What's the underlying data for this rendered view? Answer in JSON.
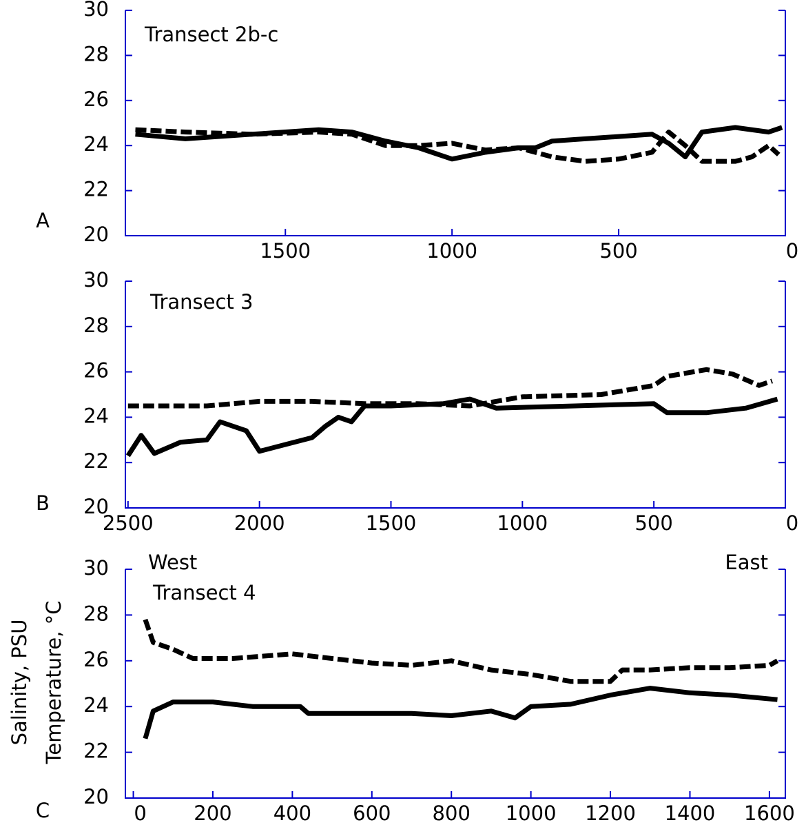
{
  "chart_data": [
    {
      "type": "line",
      "panel": "A",
      "annotations": [
        "Transect 2b-c"
      ],
      "xlim": [
        1980,
        0
      ],
      "xticks": [
        1500,
        1000,
        500,
        0
      ],
      "ylim": [
        20,
        30
      ],
      "yticks": [
        20,
        22,
        24,
        26,
        28,
        30
      ],
      "series": [
        {
          "color": "#000000",
          "dashed": false,
          "x": [
            1950,
            1800,
            1600,
            1400,
            1300,
            1200,
            1100,
            1000,
            900,
            800,
            750,
            700,
            600,
            500,
            400,
            350,
            300,
            250,
            150,
            50,
            10
          ],
          "values": [
            24.5,
            24.3,
            24.5,
            24.7,
            24.6,
            24.2,
            23.9,
            23.4,
            23.7,
            23.9,
            23.9,
            24.2,
            24.3,
            24.4,
            24.5,
            24.1,
            23.5,
            24.6,
            24.8,
            24.6,
            24.8
          ]
        },
        {
          "color": "#000000",
          "dashed": true,
          "x": [
            1950,
            1800,
            1600,
            1400,
            1300,
            1200,
            1100,
            1000,
            900,
            800,
            700,
            600,
            500,
            400,
            350,
            300,
            250,
            150,
            100,
            50,
            20
          ],
          "values": [
            24.7,
            24.6,
            24.5,
            24.6,
            24.5,
            24.0,
            24.0,
            24.1,
            23.8,
            23.9,
            23.5,
            23.3,
            23.4,
            23.7,
            24.6,
            24.0,
            23.3,
            23.3,
            23.5,
            24.0,
            23.6
          ]
        }
      ]
    },
    {
      "type": "line",
      "panel": "B",
      "annotations": [
        "Transect 3"
      ],
      "xlim": [
        2510,
        0
      ],
      "xticks": [
        2500,
        2000,
        1500,
        1000,
        500,
        0
      ],
      "ylim": [
        20,
        30
      ],
      "yticks": [
        20,
        22,
        24,
        26,
        28,
        30
      ],
      "series": [
        {
          "color": "#000000",
          "dashed": false,
          "x": [
            2500,
            2450,
            2400,
            2300,
            2200,
            2150,
            2050,
            2000,
            1900,
            1800,
            1750,
            1700,
            1650,
            1600,
            1500,
            1300,
            1200,
            1100,
            800,
            500,
            450,
            300,
            150,
            30
          ],
          "values": [
            22.3,
            23.2,
            22.4,
            22.9,
            23.0,
            23.8,
            23.4,
            22.5,
            22.8,
            23.1,
            23.6,
            24.0,
            23.8,
            24.5,
            24.5,
            24.6,
            24.8,
            24.4,
            24.5,
            24.6,
            24.2,
            24.2,
            24.4,
            24.8
          ]
        },
        {
          "color": "#000000",
          "dashed": true,
          "x": [
            2500,
            2200,
            2000,
            1800,
            1600,
            1400,
            1200,
            1000,
            700,
            500,
            450,
            300,
            200,
            100,
            50
          ],
          "values": [
            24.5,
            24.5,
            24.7,
            24.7,
            24.6,
            24.6,
            24.5,
            24.9,
            25.0,
            25.4,
            25.8,
            26.1,
            25.9,
            25.4,
            25.6
          ]
        }
      ]
    },
    {
      "type": "line",
      "panel": "C",
      "annotations": [
        "West",
        "Transect 4",
        "East"
      ],
      "ylabel": [
        "Salinity, PSU",
        "Temperature, °C"
      ],
      "xlim": [
        -20,
        1640
      ],
      "xticks": [
        0,
        200,
        400,
        600,
        800,
        1000,
        1200,
        1400,
        1600
      ],
      "ylim": [
        20,
        30
      ],
      "yticks": [
        20,
        22,
        24,
        26,
        28,
        30
      ],
      "series": [
        {
          "color": "#000000",
          "dashed": false,
          "x": [
            30,
            50,
            100,
            200,
            300,
            420,
            440,
            600,
            700,
            800,
            900,
            960,
            1000,
            1100,
            1200,
            1300,
            1400,
            1500,
            1620
          ],
          "values": [
            22.6,
            23.8,
            24.2,
            24.2,
            24.0,
            24.0,
            23.7,
            23.7,
            23.7,
            23.6,
            23.8,
            23.5,
            24.0,
            24.1,
            24.5,
            24.8,
            24.6,
            24.5,
            24.3
          ]
        },
        {
          "color": "#000000",
          "dashed": true,
          "x": [
            30,
            50,
            100,
            150,
            250,
            400,
            500,
            600,
            700,
            800,
            900,
            1000,
            1100,
            1200,
            1230,
            1300,
            1400,
            1500,
            1600,
            1620
          ],
          "values": [
            27.8,
            26.8,
            26.5,
            26.1,
            26.1,
            26.3,
            26.1,
            25.9,
            25.8,
            26.0,
            25.6,
            25.4,
            25.1,
            25.1,
            25.6,
            25.6,
            25.7,
            25.7,
            25.8,
            26.0
          ]
        }
      ]
    }
  ]
}
